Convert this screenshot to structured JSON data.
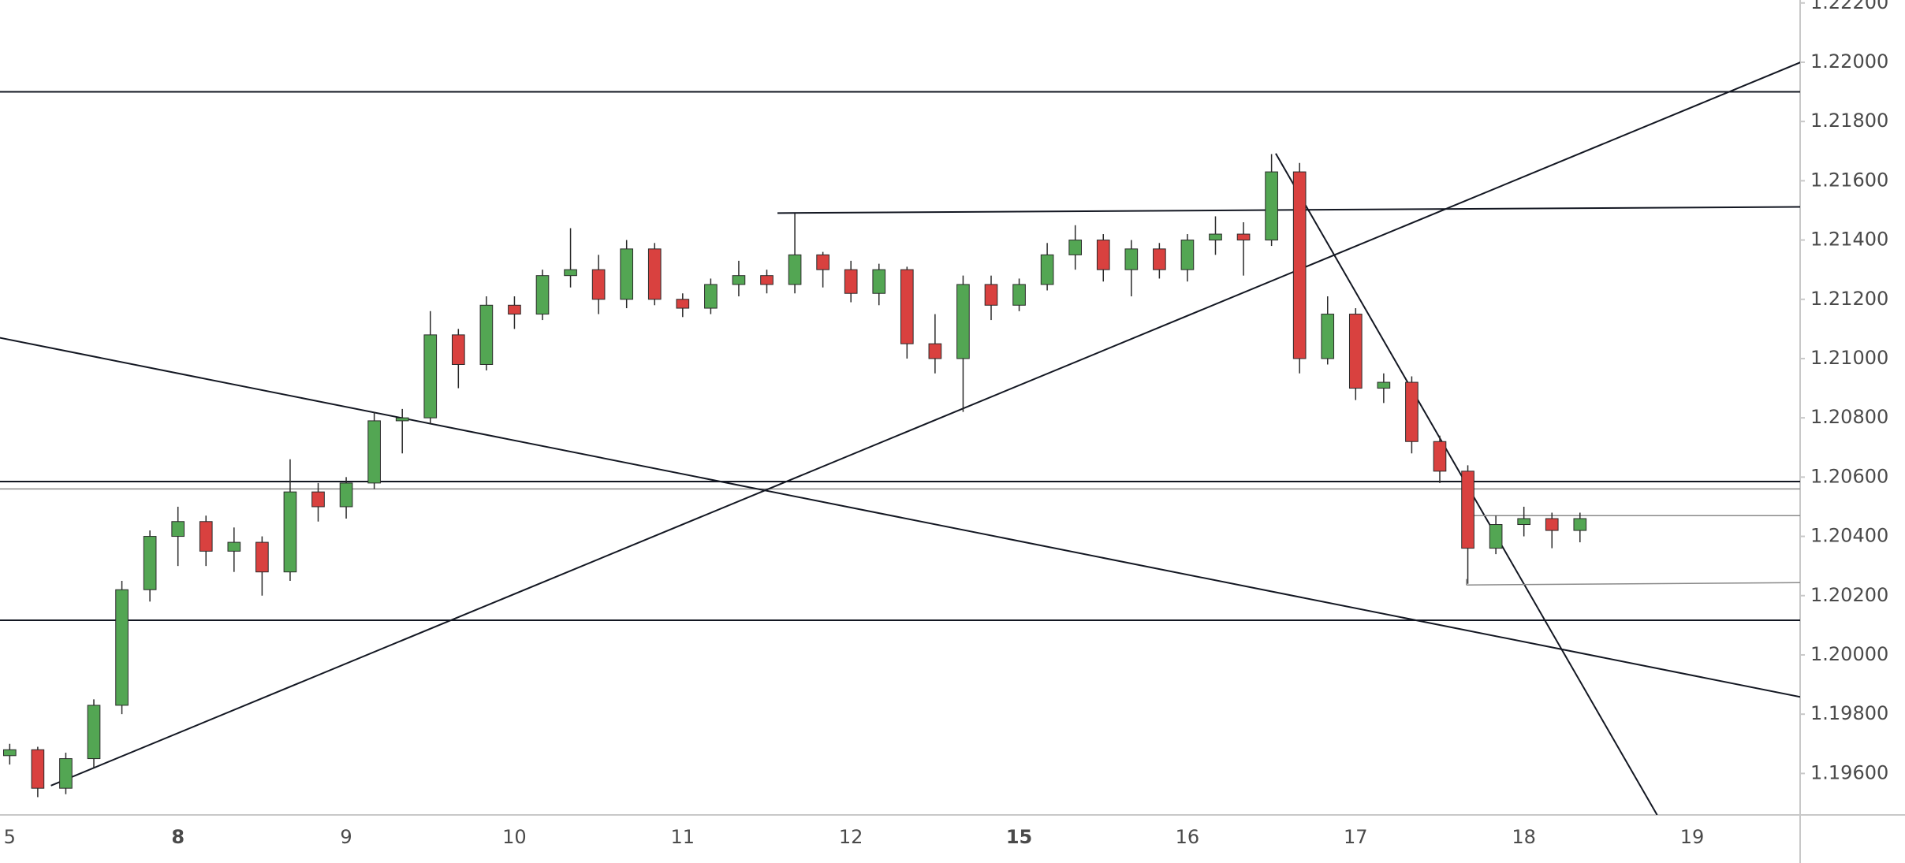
{
  "chart_data": {
    "type": "candlestick",
    "categories": [
      "5",
      null,
      null,
      null,
      null,
      null,
      "8",
      null,
      null,
      null,
      null,
      null,
      "9",
      null,
      null,
      null,
      null,
      null,
      "10",
      null,
      null,
      null,
      null,
      null,
      "11",
      null,
      null,
      null,
      null,
      null,
      "12",
      null,
      null,
      null,
      null,
      null,
      "15",
      null,
      null,
      null,
      null,
      null,
      "16",
      null,
      null,
      null,
      null,
      null,
      "17",
      null,
      null,
      null,
      null,
      null,
      "18",
      null,
      null,
      null,
      null,
      null,
      "19",
      null,
      null,
      null
    ],
    "open": [
      1.1966,
      1.1968,
      1.1955,
      1.1965,
      1.1983,
      1.2022,
      1.204,
      1.2045,
      1.2035,
      1.2038,
      1.2028,
      1.2055,
      1.205,
      1.2058,
      1.2079,
      1.208,
      1.2108,
      1.2098,
      1.2118,
      1.2115,
      1.2128,
      1.213,
      1.212,
      1.2137,
      1.212,
      1.2117,
      1.2125,
      1.2128,
      1.2125,
      1.2135,
      1.213,
      1.2122,
      1.213,
      1.2105,
      1.21,
      1.2125,
      1.2118,
      1.2125,
      1.2135,
      1.214,
      1.213,
      1.2137,
      1.213,
      1.214,
      1.2142,
      1.214,
      1.2163,
      1.21,
      1.2115,
      1.209,
      1.2092,
      1.2072,
      1.2062,
      1.2036,
      1.2044,
      1.2046,
      1.2042,
      null,
      null,
      null,
      null,
      null,
      null,
      null
    ],
    "high": [
      1.197,
      1.1969,
      1.1967,
      1.1985,
      1.2025,
      1.2042,
      1.205,
      1.2047,
      1.2043,
      1.204,
      1.2066,
      1.2058,
      1.206,
      1.2082,
      1.2083,
      1.2116,
      1.211,
      1.2121,
      1.2121,
      1.213,
      1.2144,
      1.2135,
      1.214,
      1.2139,
      1.2122,
      1.2127,
      1.2133,
      1.213,
      1.2149,
      1.2136,
      1.2133,
      1.2132,
      1.2131,
      1.2115,
      1.2128,
      1.2128,
      1.2127,
      1.2139,
      1.2145,
      1.2142,
      1.214,
      1.2139,
      1.2142,
      1.2148,
      1.2146,
      1.2169,
      1.2166,
      1.2121,
      1.2117,
      1.2095,
      1.2094,
      1.2074,
      1.2064,
      1.2047,
      1.205,
      1.2048,
      1.2048,
      null,
      null,
      null,
      null,
      null,
      null,
      null
    ],
    "low": [
      1.1963,
      1.1952,
      1.1953,
      1.1962,
      1.198,
      1.2018,
      1.203,
      1.203,
      1.2028,
      1.202,
      1.2025,
      1.2045,
      1.2046,
      1.2056,
      1.2068,
      1.2078,
      1.209,
      1.2096,
      1.211,
      1.2113,
      1.2124,
      1.2115,
      1.2117,
      1.2118,
      1.2114,
      1.2115,
      1.2121,
      1.2122,
      1.2122,
      1.2124,
      1.2119,
      1.2118,
      1.21,
      1.2095,
      1.2082,
      1.2113,
      1.2116,
      1.2123,
      1.213,
      1.2126,
      1.2121,
      1.2127,
      1.2126,
      1.2135,
      1.2128,
      1.2138,
      1.2095,
      1.2098,
      1.2086,
      1.2085,
      1.2068,
      1.2058,
      1.2024,
      1.2034,
      1.204,
      1.2036,
      1.2038,
      null,
      null,
      null,
      null,
      null,
      null,
      null
    ],
    "close": [
      1.1968,
      1.1955,
      1.1965,
      1.1983,
      1.2022,
      1.204,
      1.2045,
      1.2035,
      1.2038,
      1.2028,
      1.2055,
      1.205,
      1.2058,
      1.2079,
      1.208,
      1.2108,
      1.2098,
      1.2118,
      1.2115,
      1.2128,
      1.213,
      1.212,
      1.2137,
      1.212,
      1.2117,
      1.2125,
      1.2128,
      1.2125,
      1.2135,
      1.213,
      1.2122,
      1.213,
      1.2105,
      1.21,
      1.2125,
      1.2118,
      1.2125,
      1.2135,
      1.214,
      1.213,
      1.2137,
      1.213,
      1.214,
      1.2142,
      1.214,
      1.2163,
      1.21,
      1.2115,
      1.209,
      1.2092,
      1.2072,
      1.2062,
      1.2036,
      1.2044,
      1.2046,
      1.2042,
      1.2046,
      null,
      null,
      null,
      null,
      null,
      null,
      null
    ],
    "up_color": "#53a653",
    "down_color": "#d9413f",
    "ylim": [
      1.1946,
      1.2221
    ],
    "yticks": [
      {
        "value": 1.196,
        "label": "1.19600"
      },
      {
        "value": 1.198,
        "label": "1.19800"
      },
      {
        "value": 1.2,
        "label": "1.20000"
      },
      {
        "value": 1.202,
        "label": "1.20200"
      },
      {
        "value": 1.204,
        "label": "1.20400"
      },
      {
        "value": 1.206,
        "label": "1.20600"
      },
      {
        "value": 1.208,
        "label": "1.20800"
      },
      {
        "value": 1.21,
        "label": "1.21000"
      },
      {
        "value": 1.212,
        "label": "1.21200"
      },
      {
        "value": 1.214,
        "label": "1.21400"
      },
      {
        "value": 1.216,
        "label": "1.21600"
      },
      {
        "value": 1.218,
        "label": "1.21800"
      },
      {
        "value": 1.22,
        "label": "1.22000"
      },
      {
        "value": 1.222,
        "label": "1.22200"
      }
    ],
    "hlines": [
      {
        "value": 1.219,
        "color": "#131722"
      },
      {
        "value": 1.20585,
        "color": "#131722"
      },
      {
        "value": 1.2056,
        "color": "#8a8a8a"
      },
      {
        "value": 1.20117,
        "color": "#131722"
      }
    ],
    "segments": [
      {
        "points": [
          [
            -0.35,
            1.2107
          ],
          [
            63.87,
            1.19858
          ]
        ],
        "color": "#131722"
      },
      {
        "points": [
          [
            1.47,
            1.19559
          ],
          [
            63.87,
            1.22
          ]
        ],
        "color": "#131722"
      },
      {
        "points": [
          [
            45.15,
            1.21692
          ],
          [
            58.75,
            1.1946
          ]
        ],
        "color": "#131722"
      },
      {
        "points": [
          [
            27.38,
            1.21491
          ],
          [
            63.87,
            1.21512
          ]
        ],
        "color": "#131722"
      },
      {
        "points": [
          [
            51.95,
            1.2047
          ],
          [
            63.87,
            1.2047
          ]
        ],
        "color": "#8a8a8a"
      },
      {
        "points": [
          [
            51.95,
            1.20236
          ],
          [
            63.87,
            1.20244
          ]
        ],
        "color": "#8a8a8a"
      },
      {
        "points": [
          [
            51.95,
            1.20236
          ],
          [
            51.95,
            1.20256
          ]
        ],
        "color": "#8a8a8a"
      }
    ]
  }
}
